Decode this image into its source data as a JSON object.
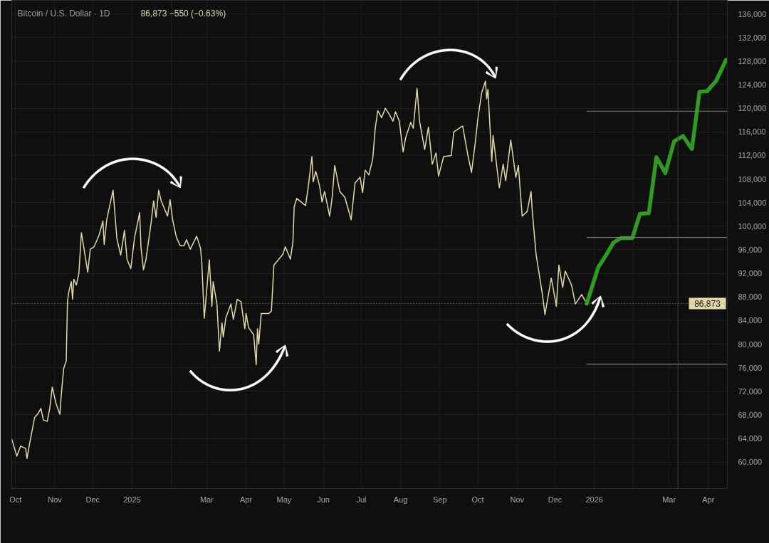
{
  "chart_data": {
    "type": "line",
    "title": "Bitcoin / U.S. Dollar · 1D",
    "subtitle": "86,873 −550 (−0.63%)",
    "xlim": [
      "2024-09-28",
      "2026-04-16"
    ],
    "ylim": [
      55500,
      138300
    ],
    "xticks": [
      {
        "value": "2024-10-01",
        "label": "Oct"
      },
      {
        "value": "2024-11-01",
        "label": "Nov"
      },
      {
        "value": "2024-12-01",
        "label": "Dec"
      },
      {
        "value": "2025-01-01",
        "label": "2025"
      },
      {
        "value": "2025-02-01",
        "label": null
      },
      {
        "value": "2025-03-01",
        "label": "Mar"
      },
      {
        "value": "2025-04-01",
        "label": "Apr"
      },
      {
        "value": "2025-05-01",
        "label": "May"
      },
      {
        "value": "2025-06-01",
        "label": "Jun"
      },
      {
        "value": "2025-07-01",
        "label": "Jul"
      },
      {
        "value": "2025-08-01",
        "label": "Aug"
      },
      {
        "value": "2025-09-01",
        "label": "Sep"
      },
      {
        "value": "2025-10-01",
        "label": "Oct"
      },
      {
        "value": "2025-11-01",
        "label": "Nov"
      },
      {
        "value": "2025-12-01",
        "label": "Dec"
      },
      {
        "value": "2026-01-01",
        "label": "2026"
      },
      {
        "value": "2026-02-01",
        "label": null
      },
      {
        "value": "2026-03-01",
        "label": "Mar"
      },
      {
        "value": "2026-04-01",
        "label": "Apr"
      }
    ],
    "yticks": [
      {
        "value": 60000,
        "label": "60,000"
      },
      {
        "value": 64000,
        "label": "64,000"
      },
      {
        "value": 68000,
        "label": "68,000"
      },
      {
        "value": 72000,
        "label": "72,000"
      },
      {
        "value": 76000,
        "label": "76,000"
      },
      {
        "value": 80000,
        "label": "80,000"
      },
      {
        "value": 84000,
        "label": "84,000"
      },
      {
        "value": 88000,
        "label": "88,000"
      },
      {
        "value": 92000,
        "label": "92,000"
      },
      {
        "value": 96000,
        "label": "96,000"
      },
      {
        "value": 100000,
        "label": "100,000"
      },
      {
        "value": 104000,
        "label": "104,000"
      },
      {
        "value": 108000,
        "label": "108,000"
      },
      {
        "value": 112000,
        "label": "112,000"
      },
      {
        "value": 116000,
        "label": "116,000"
      },
      {
        "value": 120000,
        "label": "120,000"
      },
      {
        "value": 124000,
        "label": "124,000"
      },
      {
        "value": 128000,
        "label": "128,000"
      },
      {
        "value": 132000,
        "label": "132,000"
      },
      {
        "value": 136000,
        "label": "136,000"
      }
    ],
    "series": [
      {
        "color": "#e3d9a6",
        "x": [
          "2024-09-28",
          "2024-10-02",
          "2024-10-05",
          "2024-10-09",
          "2024-10-10",
          "2024-10-12",
          "2024-10-16",
          "2024-10-19",
          "2024-10-21",
          "2024-10-23",
          "2024-10-26",
          "2024-10-28",
          "2024-10-30",
          "2024-11-02",
          "2024-11-05",
          "2024-11-06",
          "2024-11-08",
          "2024-11-10",
          "2024-11-11",
          "2024-11-12",
          "2024-11-14",
          "2024-11-15",
          "2024-11-16",
          "2024-11-18",
          "2024-11-20",
          "2024-11-22",
          "2024-11-27",
          "2024-11-29",
          "2024-12-02",
          "2024-12-06",
          "2024-12-09",
          "2024-12-10",
          "2024-12-12",
          "2024-12-17",
          "2024-12-20",
          "2024-12-23",
          "2024-12-26",
          "2024-12-28",
          "2024-12-31",
          "2025-01-03",
          "2025-01-07",
          "2025-01-08",
          "2025-01-10",
          "2025-01-12",
          "2025-01-16",
          "2025-01-18",
          "2025-01-20",
          "2025-01-22",
          "2025-01-24",
          "2025-01-29",
          "2025-01-31",
          "2025-02-02",
          "2025-02-05",
          "2025-02-08",
          "2025-02-11",
          "2025-02-13",
          "2025-02-16",
          "2025-02-21",
          "2025-02-24",
          "2025-02-25",
          "2025-02-27",
          "2025-03-03",
          "2025-03-05",
          "2025-03-06",
          "2025-03-09",
          "2025-03-11",
          "2025-03-13",
          "2025-03-14",
          "2025-03-16",
          "2025-03-20",
          "2025-03-22",
          "2025-03-25",
          "2025-03-28",
          "2025-03-31",
          "2025-04-01",
          "2025-04-03",
          "2025-04-07",
          "2025-04-09",
          "2025-04-10",
          "2025-04-11",
          "2025-04-13",
          "2025-04-19",
          "2025-04-21",
          "2025-04-23",
          "2025-04-30",
          "2025-05-02",
          "2025-05-06",
          "2025-05-08",
          "2025-05-09",
          "2025-05-11",
          "2025-05-18",
          "2025-05-20",
          "2025-05-23",
          "2025-05-24",
          "2025-05-26",
          "2025-05-29",
          "2025-05-31",
          "2025-06-02",
          "2025-06-06",
          "2025-06-08",
          "2025-06-10",
          "2025-06-14",
          "2025-06-18",
          "2025-06-23",
          "2025-06-26",
          "2025-06-30",
          "2025-07-02",
          "2025-07-04",
          "2025-07-07",
          "2025-07-10",
          "2025-07-12",
          "2025-07-14",
          "2025-07-17",
          "2025-07-20",
          "2025-07-23",
          "2025-07-26",
          "2025-07-28",
          "2025-07-31",
          "2025-08-03",
          "2025-08-05",
          "2025-08-09",
          "2025-08-11",
          "2025-08-14",
          "2025-08-16",
          "2025-08-20",
          "2025-08-23",
          "2025-08-26",
          "2025-08-29",
          "2025-08-31",
          "2025-09-04",
          "2025-09-10",
          "2025-09-12",
          "2025-09-19",
          "2025-09-23",
          "2025-09-26",
          "2025-09-29",
          "2025-10-01",
          "2025-10-04",
          "2025-10-07",
          "2025-10-08",
          "2025-10-09",
          "2025-10-12",
          "2025-10-13",
          "2025-10-18",
          "2025-10-21",
          "2025-10-23",
          "2025-10-27",
          "2025-10-31",
          "2025-11-02",
          "2025-11-05",
          "2025-11-09",
          "2025-11-12",
          "2025-11-13",
          "2025-11-16",
          "2025-11-21",
          "2025-11-23",
          "2025-11-28",
          "2025-12-02",
          "2025-12-04",
          "2025-12-07",
          "2025-12-09",
          "2025-12-14",
          "2025-12-17",
          "2025-12-22",
          "2025-12-26"
        ],
        "values": [
          63900,
          61000,
          62700,
          62300,
          60600,
          63000,
          67500,
          68300,
          69100,
          67100,
          66900,
          69100,
          72700,
          69900,
          68100,
          71100,
          75900,
          77100,
          87200,
          88800,
          90600,
          87600,
          91000,
          90000,
          92000,
          98900,
          92200,
          96100,
          96500,
          98500,
          100900,
          96900,
          101100,
          106100,
          97900,
          95100,
          99300,
          94400,
          92800,
          98100,
          102300,
          96500,
          92600,
          94400,
          100500,
          104300,
          101500,
          106100,
          104300,
          101700,
          104500,
          101100,
          98100,
          96700,
          96700,
          97700,
          96100,
          98300,
          96300,
          94000,
          84400,
          94300,
          86400,
          90600,
          86800,
          78800,
          83600,
          81200,
          84400,
          86800,
          84200,
          87600,
          87200,
          82600,
          85200,
          82800,
          81600,
          76500,
          82600,
          80000,
          85200,
          85200,
          85600,
          93400,
          95200,
          96500,
          94400,
          97300,
          103300,
          104700,
          103500,
          106500,
          111800,
          107500,
          109300,
          106900,
          104100,
          105900,
          101700,
          104900,
          110300,
          105900,
          104900,
          101100,
          107300,
          108300,
          105700,
          109500,
          108700,
          111400,
          116600,
          119600,
          118400,
          120000,
          119000,
          117800,
          119400,
          117800,
          112600,
          115000,
          117600,
          116600,
          123400,
          117800,
          113000,
          116800,
          110500,
          112400,
          108500,
          111800,
          112000,
          116000,
          117000,
          112200,
          109100,
          114200,
          118200,
          122600,
          124600,
          121600,
          123200,
          111000,
          115400,
          106500,
          110500,
          107700,
          114600,
          108300,
          110300,
          101700,
          102500,
          105900,
          102500,
          95200,
          88400,
          85000,
          91200,
          86400,
          93400,
          89600,
          92400,
          90000,
          86800,
          88400,
          86873
        ]
      },
      {
        "color": "#2f9b20",
        "x": [
          "2025-12-26",
          "2026-01-04",
          "2026-01-10",
          "2026-01-16",
          "2026-01-22",
          "2026-01-31",
          "2026-02-06",
          "2026-02-13",
          "2026-02-19",
          "2026-02-26",
          "2026-03-05",
          "2026-03-12",
          "2026-03-19",
          "2026-03-25",
          "2026-03-31",
          "2026-04-07",
          "2026-04-15"
        ],
        "values": [
          86873,
          93000,
          95000,
          97200,
          98000,
          98000,
          102100,
          102200,
          111700,
          109000,
          114400,
          115300,
          113100,
          122800,
          122900,
          124600,
          128200
        ]
      },
      {
        "color": "#7d7d7d",
        "x": [
          "2025-12-26",
          "2026-04-16"
        ],
        "values": [
          119500,
          119500
        ]
      },
      {
        "color": "#7d7d7d",
        "x": [
          "2025-12-26",
          "2026-04-16"
        ],
        "values": [
          98100,
          98100
        ]
      },
      {
        "color": "#7d7d7d",
        "x": [
          "2025-12-26",
          "2026-04-16"
        ],
        "values": [
          76600,
          76600
        ]
      }
    ],
    "ref_lines": [
      {
        "axis": "y",
        "value": 86873,
        "label": "86,873",
        "color": "#9e9e9e",
        "line_style": "dotted"
      },
      {
        "axis": "x",
        "value": "2026-03-08",
        "color": "#3f3f3f"
      }
    ],
    "grid": true
  }
}
